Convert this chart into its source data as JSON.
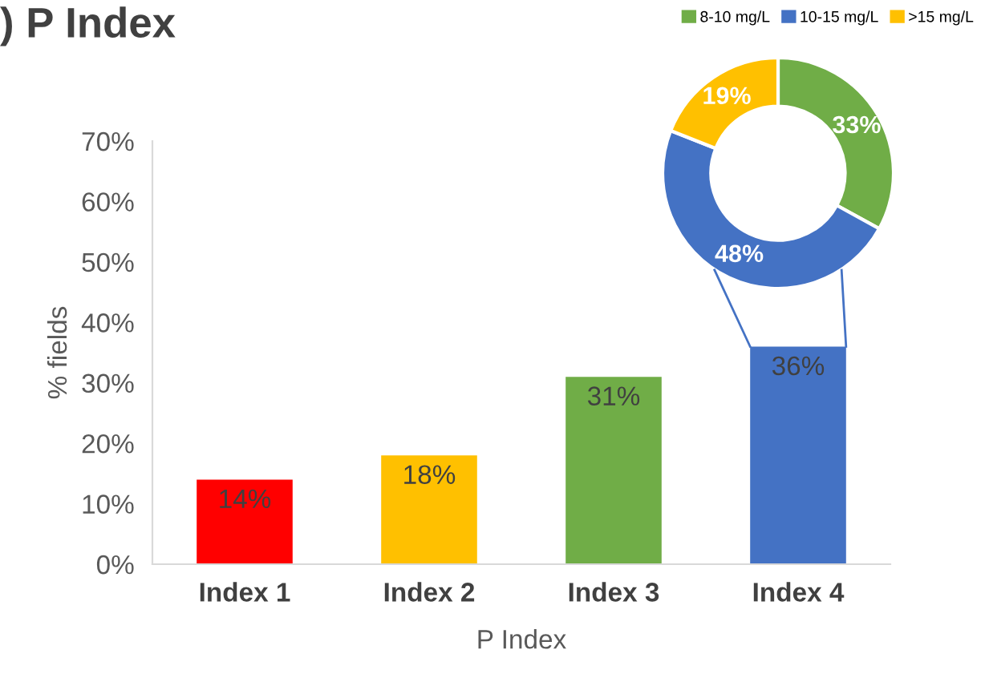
{
  "chart_data": [
    {
      "type": "bar",
      "title": ") P Index",
      "xlabel": "P Index",
      "ylabel": "% fields",
      "categories": [
        "Index 1",
        "Index 2",
        "Index 3",
        "Index 4"
      ],
      "values": [
        14,
        18,
        31,
        36
      ],
      "colors": [
        "#ff0000",
        "#ffc000",
        "#70ad47",
        "#4472c4"
      ],
      "value_labels": [
        "14%",
        "18%",
        "31%",
        "36%"
      ],
      "ylim": [
        0,
        70
      ],
      "yticks": [
        {
          "value": 0,
          "label": "0%"
        },
        {
          "value": 10,
          "label": "10%"
        },
        {
          "value": 20,
          "label": "20%"
        },
        {
          "value": 30,
          "label": "30%"
        },
        {
          "value": 40,
          "label": "40%"
        },
        {
          "value": 50,
          "label": "50%"
        },
        {
          "value": 60,
          "label": "60%"
        },
        {
          "value": 70,
          "label": "70%"
        }
      ],
      "grid": false
    },
    {
      "type": "donut",
      "categories": [
        "8-10 mg/L",
        "10-15 mg/L",
        ">15 mg/L"
      ],
      "values": [
        33,
        48,
        19
      ],
      "colors": [
        "#70ad47",
        "#4472c4",
        "#ffc000"
      ],
      "value_labels": [
        "33%",
        "48%",
        "19%"
      ],
      "legend": "top"
    }
  ]
}
